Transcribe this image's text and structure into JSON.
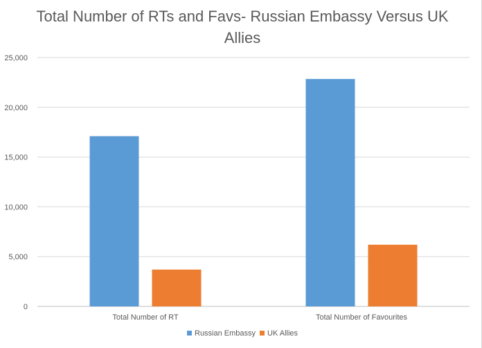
{
  "chart_data": {
    "type": "bar",
    "title": "Total Number of RTs and Favs- Russian Embassy Versus UK Allies",
    "categories": [
      "Total Number of RT",
      "Total Number of Favourites"
    ],
    "series": [
      {
        "name": "Russian Embassy",
        "color": "#5b9bd5",
        "values": [
          17100,
          22850
        ]
      },
      {
        "name": "UK Allies",
        "color": "#ed7d31",
        "values": [
          3700,
          6200
        ]
      }
    ],
    "yticks": [
      "0",
      "5,000",
      "10,000",
      "15,000",
      "20,000",
      "25,000"
    ],
    "ylim": [
      0,
      25000
    ],
    "grid": true,
    "legend": "bottom"
  }
}
